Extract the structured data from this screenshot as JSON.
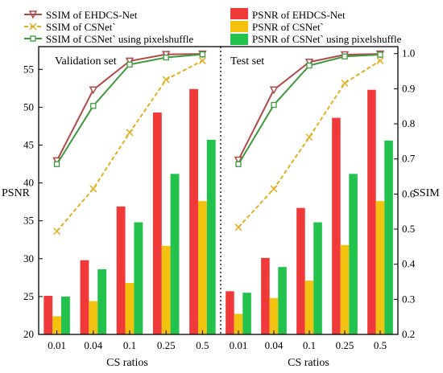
{
  "chart_data": {
    "type": "bar",
    "categories": [
      "0.01",
      "0.04",
      "0.1",
      "0.25",
      "0.5"
    ],
    "xlabel": "CS ratios",
    "ylabel_left": "PSNR",
    "ylabel_right": "SSIM",
    "ylim_left": [
      20,
      58
    ],
    "ylim_right": [
      0.2,
      1.02
    ],
    "yticks_left": [
      20,
      25,
      30,
      35,
      40,
      45,
      50,
      55
    ],
    "yticks_right": [
      "0.2",
      "0.3",
      "0.4",
      "0.5",
      "0.6",
      "0.7",
      "0.8",
      "0.9",
      "1.0"
    ],
    "legend": {
      "line_items": [
        "SSIM of EHDCS-Net",
        "SSIM of CSNet`",
        "SSIM of CSNet` using pixelshuffle"
      ],
      "bar_items": [
        "PSNR of EHDCS-Net",
        "PSNR of CSNet`",
        "PSNR of CSNet` using pixelshuffle"
      ],
      "placement": "top"
    },
    "colors": {
      "bar_ehdcs": "#f03a3a",
      "bar_csnet": "#f2c20f",
      "bar_pixel": "#22c24c",
      "line_ehdcs": "#b04a4a",
      "line_csnet": "#e0b020",
      "line_pixel": "#3c9a3c"
    },
    "panels": [
      {
        "label": "Validation set",
        "psnr": {
          "ehdcs": [
            25.1,
            29.8,
            36.9,
            49.3,
            52.4
          ],
          "csnet": [
            22.4,
            24.4,
            26.8,
            31.7,
            37.6
          ],
          "pixel": [
            25.0,
            28.6,
            34.8,
            41.2,
            45.7
          ]
        },
        "ssim": {
          "ehdcs": [
            0.695,
            0.897,
            0.979,
            0.998,
            0.999
          ],
          "csnet": [
            0.494,
            0.615,
            0.775,
            0.926,
            0.98
          ],
          "pixel": [
            0.685,
            0.851,
            0.969,
            0.989,
            0.998
          ]
        }
      },
      {
        "label": "Test set",
        "psnr": {
          "ehdcs": [
            25.7,
            30.1,
            36.7,
            48.6,
            52.3
          ],
          "csnet": [
            22.7,
            24.8,
            27.1,
            31.8,
            37.6
          ],
          "pixel": [
            25.5,
            28.9,
            34.8,
            41.2,
            45.6
          ]
        },
        "ssim": {
          "ehdcs": [
            0.697,
            0.897,
            0.976,
            0.997,
            0.999
          ],
          "csnet": [
            0.505,
            0.615,
            0.762,
            0.916,
            0.98
          ],
          "pixel": [
            0.685,
            0.854,
            0.966,
            0.992,
            0.997
          ]
        }
      }
    ]
  }
}
